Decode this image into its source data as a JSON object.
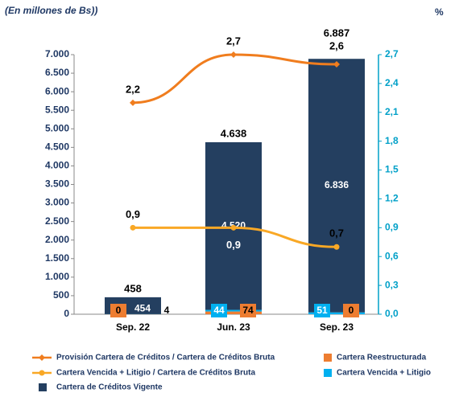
{
  "chart_data": {
    "type": "bar",
    "title": "(En millones de Bs))",
    "y2_axis_label": "%",
    "categories": [
      "Sep. 22",
      "Jun. 23",
      "Sep. 23"
    ],
    "ylim": [
      0,
      7000
    ],
    "yticks": [
      0,
      500,
      {
        "value": 1000,
        "label": "1.000"
      },
      {
        "value": 1500,
        "label": "1.500"
      },
      {
        "value": 2000,
        "label": "2.000"
      },
      {
        "value": 2500,
        "label": "2.500"
      },
      {
        "value": 3000,
        "label": "3.000"
      },
      {
        "value": 3500,
        "label": "3.500"
      },
      {
        "value": 4000,
        "label": "4.000"
      },
      {
        "value": 4500,
        "label": "4.500"
      },
      {
        "value": 5000,
        "label": "5.000"
      },
      {
        "value": 5500,
        "label": "5.500"
      },
      {
        "value": 6000,
        "label": "6.000"
      },
      {
        "value": 6500,
        "label": "6.500"
      },
      {
        "value": 7000,
        "label": "7.000"
      }
    ],
    "y2lim": [
      0,
      2.7
    ],
    "y2ticks": [
      {
        "value": 0,
        "label": "0,0"
      },
      {
        "value": 0.3,
        "label": "0,3"
      },
      {
        "value": 0.6,
        "label": "0,6"
      },
      {
        "value": 0.9,
        "label": "0,9"
      },
      {
        "value": 1.2,
        "label": "1,2"
      },
      {
        "value": 1.5,
        "label": "1,5"
      },
      {
        "value": 1.8,
        "label": "1,8"
      },
      {
        "value": 2.1,
        "label": "2,1"
      },
      {
        "value": 2.4,
        "label": "2,4"
      },
      {
        "value": 2.7,
        "label": "2,7"
      }
    ],
    "total_labels": [
      "458",
      "4.638",
      "6.887"
    ],
    "series": [
      {
        "name": "Cartera Reestructurada",
        "type": "bar",
        "color": "#ed7d31",
        "values": [
          0,
          74,
          0
        ]
      },
      {
        "name": "Cartera Vencida + Litigio",
        "type": "bar",
        "color": "#00b0f0",
        "values": [
          4,
          44,
          51
        ]
      },
      {
        "name": "Cartera de Créditos Vigente",
        "type": "bar",
        "color": "#243f60",
        "values": [
          454,
          4520,
          6836
        ],
        "value_labels": [
          "454",
          "4.520",
          "6.836"
        ]
      },
      {
        "name": "Provisión Cartera de Créditos / Cartera de Créditos Bruta",
        "type": "line",
        "axis": "y2",
        "color": "#f07d1e",
        "values": [
          2.2,
          2.7,
          2.6
        ],
        "value_labels": [
          "2,2",
          "2,7",
          "2,6"
        ]
      },
      {
        "name": "Cartera Vencida + Litigio / Cartera de Créditos Bruta",
        "type": "line",
        "axis": "y2",
        "color": "#f9a825",
        "values": [
          0.9,
          0.9,
          0.7
        ],
        "value_labels": [
          "0,9",
          "0,9",
          "0,7"
        ]
      }
    ]
  }
}
